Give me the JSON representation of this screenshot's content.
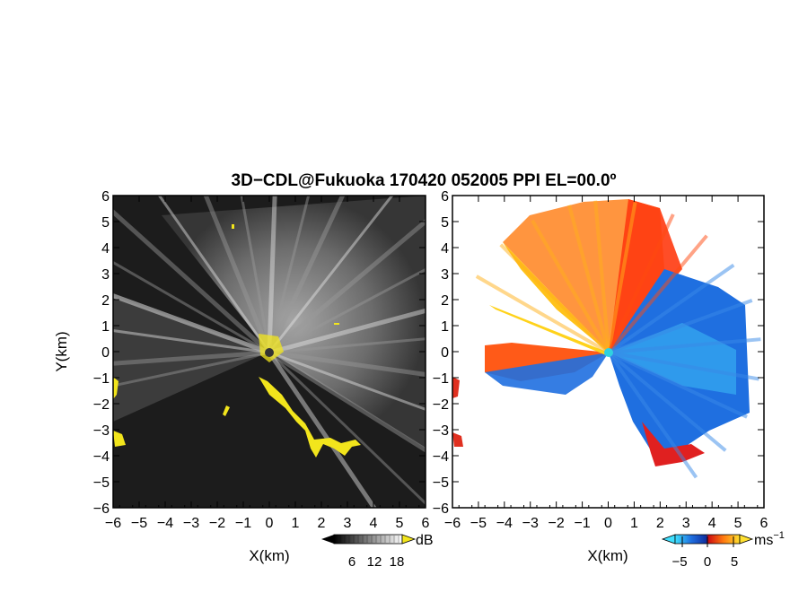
{
  "chart_data": {
    "title": "3D−CDL@Fukuoka 170420 052005 PPI EL=00.0º",
    "panels": [
      {
        "id": "snr",
        "type": "heatmap",
        "xlabel": "X(km)",
        "ylabel": "Y(km)",
        "xlim": [
          -6,
          6
        ],
        "ylim": [
          -6,
          6
        ],
        "xticks": [
          "−6",
          "−5",
          "−4",
          "−3",
          "−2",
          "−1",
          "0",
          "1",
          "2",
          "3",
          "4",
          "5",
          "6"
        ],
        "yticks": [
          "6",
          "5",
          "4",
          "3",
          "2",
          "1",
          "0",
          "−1",
          "−2",
          "−3",
          "−4",
          "−5",
          "−6"
        ],
        "colorbar": {
          "ticks": [
            "6",
            "12",
            "18"
          ],
          "unit": "dB",
          "colormap": "grayscale"
        },
        "colors": {
          "background": "#1c1c1c",
          "highlight": "#f2e51c"
        }
      },
      {
        "id": "velocity",
        "type": "heatmap",
        "xlabel": "X(km)",
        "xlim": [
          -6,
          6
        ],
        "ylim": [
          -6,
          6
        ],
        "xticks": [
          "−6",
          "−5",
          "−4",
          "−3",
          "−2",
          "−1",
          "0",
          "1",
          "2",
          "3",
          "4",
          "5",
          "6"
        ],
        "yticks": [
          "6",
          "5",
          "4",
          "3",
          "2",
          "1",
          "0",
          "−1",
          "−2",
          "−3",
          "−4",
          "−5",
          "−6"
        ],
        "colorbar": {
          "ticks": [
            "−5",
            "0",
            "5"
          ],
          "unit": "ms",
          "unit_exponent": "−1",
          "colormap": "cyan-blue-red-orange-yellow"
        },
        "colors": {
          "negative": "#1f6fe0",
          "positive": "#ff4a10",
          "strong_positive": "#ffd21a",
          "center": "#2fd2e0"
        }
      }
    ]
  }
}
